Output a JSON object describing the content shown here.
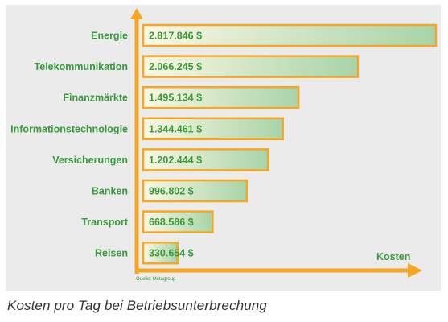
{
  "chart_data": {
    "type": "bar",
    "orientation": "horizontal",
    "categories": [
      "Energie",
      "Telekommunikation",
      "Finanzmärkte",
      "Informationstechnologie",
      "Versicherungen",
      "Banken",
      "Transport",
      "Reisen"
    ],
    "values": [
      2817846,
      2066245,
      1495134,
      1344461,
      1202444,
      996802,
      668586,
      330654
    ],
    "value_labels": [
      "2.817.846 $",
      "2.066.245 $",
      "1.495.134 $",
      "1.344.461 $",
      "1.202.444 $",
      "996.802 $",
      "668.586 $",
      "330.654 $"
    ],
    "xlabel": "Kosten",
    "source": "Quelle: Metagroup",
    "caption": "Kosten pro Tag bei Betriebsunterbrechung",
    "grid": false,
    "legend": "none",
    "colors": {
      "axis": "#f5a623",
      "bar_border": "#f5a623",
      "bar_fill_start": "#fbf7e3",
      "bar_fill_end": "#a8d4a9",
      "text": "#3a9a3c",
      "background": "#ebebeb"
    }
  }
}
